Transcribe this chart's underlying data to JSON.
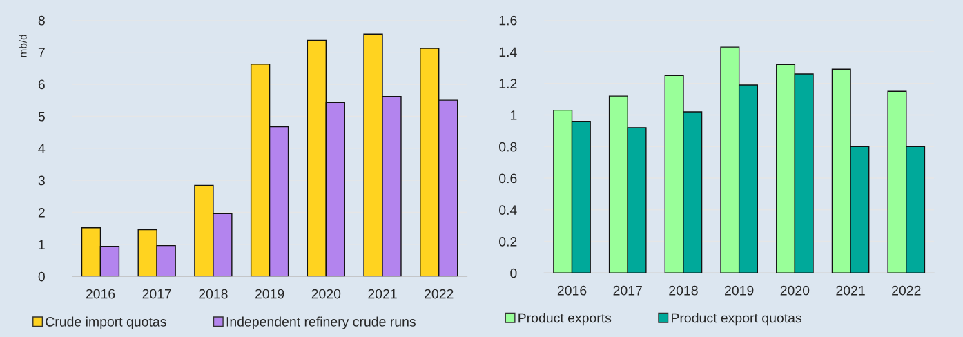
{
  "chart_data": [
    {
      "type": "bar",
      "ylabel": "mb/d",
      "categories": [
        "2016",
        "2017",
        "2018",
        "2019",
        "2020",
        "2021",
        "2022"
      ],
      "ylim": [
        0,
        8
      ],
      "yticks": [
        0,
        1,
        2,
        3,
        4,
        5,
        6,
        7,
        8
      ],
      "grid": "y",
      "legend": "bottom",
      "series": [
        {
          "name": "Crude import quotas",
          "color": "#ffd320",
          "values": [
            1.52,
            1.46,
            2.84,
            6.63,
            7.37,
            7.57,
            7.12
          ]
        },
        {
          "name": "Independent refinery crude runs",
          "color": "#b384ee",
          "values": [
            0.94,
            0.96,
            1.96,
            4.67,
            5.43,
            5.62,
            5.5
          ]
        }
      ]
    },
    {
      "type": "bar",
      "categories": [
        "2016",
        "2017",
        "2018",
        "2019",
        "2020",
        "2021",
        "2022"
      ],
      "ylim": [
        0,
        1.6
      ],
      "yticks": [
        0,
        {
          "value": 0.2,
          "label": "0.2"
        },
        {
          "value": 0.4,
          "label": "0.4"
        },
        {
          "value": 0.6,
          "label": "0.6"
        },
        {
          "value": 0.8,
          "label": "0.8"
        },
        1,
        {
          "value": 1.2,
          "label": "1.2"
        },
        {
          "value": 1.4,
          "label": "1.4"
        },
        {
          "value": 1.6,
          "label": "1.6"
        }
      ],
      "grid": "y",
      "legend": "bottom",
      "series": [
        {
          "name": "Product exports",
          "color": "#99ff99",
          "values": [
            1.03,
            1.12,
            1.25,
            1.43,
            1.32,
            1.29,
            1.15
          ]
        },
        {
          "name": "Product export quotas",
          "color": "#00a99a",
          "values": [
            0.96,
            0.92,
            1.02,
            1.19,
            1.26,
            0.8,
            0.8
          ]
        }
      ]
    }
  ]
}
